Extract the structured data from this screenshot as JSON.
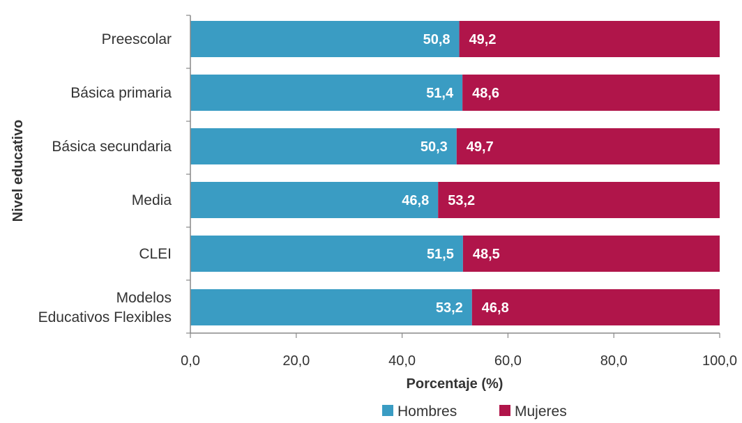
{
  "chart_data": {
    "type": "bar",
    "orientation": "horizontal",
    "stacked": true,
    "categories": [
      "Preescolar",
      "Básica primaria",
      "Básica secundaria",
      "Media",
      "CLEI",
      "Modelos Educativos Flexibles"
    ],
    "category_lines": [
      [
        "Preescolar"
      ],
      [
        "Básica primaria"
      ],
      [
        "Básica secundaria"
      ],
      [
        "Media"
      ],
      [
        "CLEI"
      ],
      [
        "Modelos",
        "Educativos Flexibles"
      ]
    ],
    "series": [
      {
        "name": "Hombres",
        "color": "#3a9cc3",
        "values": [
          50.8,
          51.4,
          50.3,
          46.8,
          51.5,
          53.2
        ],
        "labels": [
          "50,8",
          "51,4",
          "50,3",
          "46,8",
          "51,5",
          "53,2"
        ]
      },
      {
        "name": "Mujeres",
        "color": "#b0154a",
        "values": [
          49.2,
          48.6,
          49.7,
          53.2,
          48.5,
          46.8
        ],
        "labels": [
          "49,2",
          "48,6",
          "49,7",
          "53,2",
          "48,5",
          "46,8"
        ]
      }
    ],
    "xlim": [
      0,
      100
    ],
    "xticks": [
      0,
      20,
      40,
      60,
      80,
      100
    ],
    "xtick_labels": [
      "0,0",
      "20,0",
      "40,0",
      "60,0",
      "80,0",
      "100,0"
    ],
    "xlabel": "Porcentaje (%)",
    "ylabel": "Nivel educativo",
    "grid": false,
    "legend_position": "bottom"
  }
}
